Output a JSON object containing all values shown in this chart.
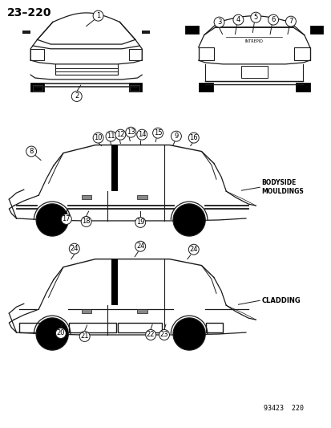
{
  "title": "23–220",
  "subtitle": "93423  220",
  "bg": "#ffffff",
  "lc": "#1a1a1a",
  "tc": "#000000",
  "label_mouldings": "BODYSIDE\nMOULDINGS",
  "label_cladding": "CLADDING",
  "label_intrepid": "INTREPID"
}
